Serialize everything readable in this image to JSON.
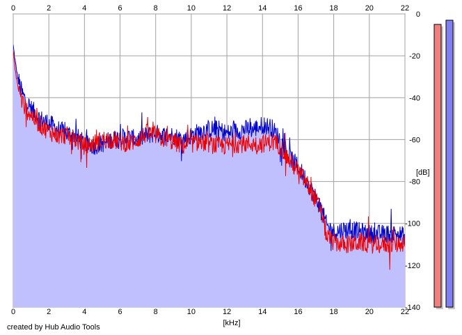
{
  "footer": {
    "credit": "created by Hub Audio Tools"
  },
  "chart_data": {
    "type": "area",
    "xlabel": "[kHz]",
    "ylabel": "[dB]",
    "xlim": [
      0,
      22
    ],
    "ylim": [
      -140,
      0
    ],
    "x_ticks": [
      0,
      2,
      4,
      6,
      8,
      10,
      12,
      14,
      16,
      18,
      20,
      22
    ],
    "y_ticks": [
      0,
      -20,
      -40,
      -60,
      -80,
      -100,
      -120,
      -140
    ],
    "grid": true,
    "x_axis_labels": "top-and-bottom",
    "y_axis_labels": "right",
    "level_meters": [
      {
        "channel": "left",
        "color": "#f08080",
        "value_db": -5
      },
      {
        "channel": "right",
        "color": "#8080f0",
        "value_db": -3
      }
    ],
    "series": [
      {
        "color": "#0000cc",
        "fill": "#c0c0ff",
        "x": [
          0,
          0.1,
          0.25,
          0.5,
          0.75,
          1,
          1.5,
          2,
          2.5,
          3,
          3.5,
          4,
          4.5,
          5,
          5.5,
          6,
          6.5,
          7,
          7.5,
          8,
          8.5,
          9,
          9.5,
          10,
          10.5,
          11,
          11.5,
          12,
          12.5,
          13,
          13.5,
          14,
          14.5,
          15,
          15.5,
          16,
          16.5,
          17,
          17.3,
          17.6,
          18,
          18.5,
          19,
          19.5,
          20,
          20.5,
          21,
          21.5,
          22
        ],
        "y": [
          -15,
          -22,
          -30,
          -38,
          -42,
          -45,
          -50,
          -52,
          -55,
          -57,
          -58,
          -62,
          -63,
          -62,
          -60,
          -59,
          -59,
          -60,
          -58,
          -57,
          -58,
          -58,
          -60,
          -58,
          -56,
          -55,
          -55,
          -57,
          -56,
          -55,
          -55,
          -53,
          -54,
          -60,
          -68,
          -73,
          -80,
          -88,
          -93,
          -101,
          -104,
          -103,
          -103,
          -104,
          -105,
          -105,
          -105,
          -105,
          -106
        ]
      },
      {
        "color": "#ee0000",
        "x": [
          0,
          0.1,
          0.25,
          0.5,
          0.75,
          1,
          1.5,
          2,
          2.5,
          3,
          3.5,
          4,
          4.5,
          5,
          5.5,
          6,
          6.5,
          7,
          7.5,
          8,
          8.5,
          9,
          9.5,
          10,
          10.5,
          11,
          11.5,
          12,
          12.5,
          13,
          13.5,
          14,
          14.5,
          15,
          15.5,
          16,
          16.5,
          17,
          17.3,
          17.6,
          18,
          18.5,
          19,
          19.5,
          20,
          20.5,
          21,
          21.5,
          22
        ],
        "y": [
          -18,
          -26,
          -34,
          -42,
          -46,
          -48,
          -53,
          -56,
          -58,
          -58,
          -60,
          -63,
          -62,
          -60,
          -60,
          -61,
          -62,
          -60,
          -57,
          -58,
          -60,
          -61,
          -63,
          -62,
          -61,
          -62,
          -63,
          -63,
          -62,
          -62,
          -62,
          -62,
          -61,
          -63,
          -70,
          -75,
          -81,
          -89,
          -94,
          -106,
          -109,
          -110,
          -110,
          -109,
          -110,
          -110,
          -110,
          -110,
          -109
        ]
      }
    ]
  }
}
